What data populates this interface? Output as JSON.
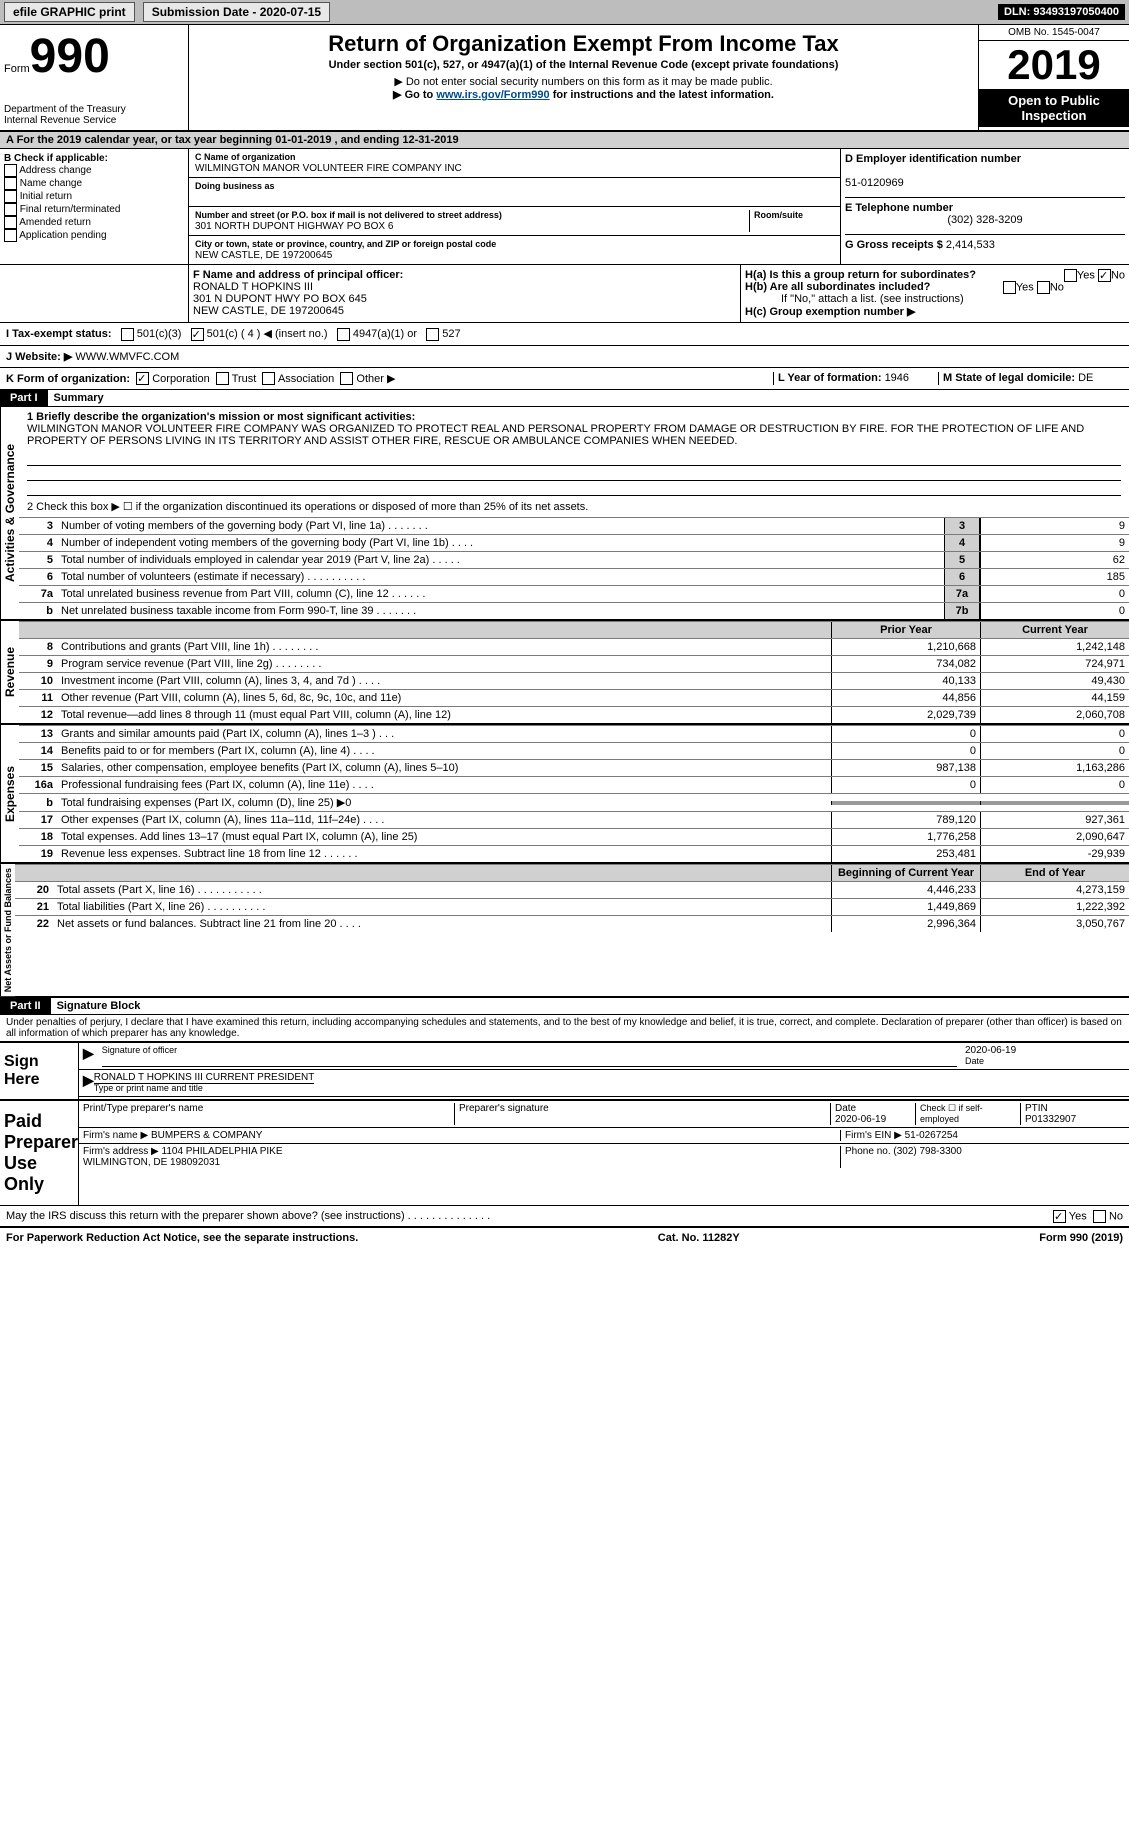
{
  "topbar": {
    "efile": "efile GRAPHIC print",
    "sub_lbl": "Submission Date - ",
    "sub_date": "2020-07-15",
    "dln_lbl": "DLN: ",
    "dln": "93493197050400"
  },
  "header": {
    "form_prefix": "Form",
    "form_no": "990",
    "dept": "Department of the Treasury\nInternal Revenue Service",
    "title": "Return of Organization Exempt From Income Tax",
    "subtitle": "Under section 501(c), 527, or 4947(a)(1) of the Internal Revenue Code (except private foundations)",
    "note1": "▶ Do not enter social security numbers on this form as it may be made public.",
    "note2_a": "▶ Go to ",
    "note2_link": "www.irs.gov/Form990",
    "note2_b": " for instructions and the latest information.",
    "omb": "OMB No. 1545-0047",
    "year": "2019",
    "open": "Open to Public Inspection"
  },
  "Aline": "A For the 2019 calendar year, or tax year beginning 01-01-2019   , and ending 12-31-2019",
  "B": {
    "lbl": "B Check if applicable:",
    "items": [
      "Address change",
      "Name change",
      "Initial return",
      "Final return/terminated",
      "Amended return",
      "Application pending"
    ]
  },
  "C": {
    "name_lbl": "C Name of organization",
    "name": "WILMINGTON MANOR VOLUNTEER FIRE COMPANY INC",
    "dba_lbl": "Doing business as",
    "addr_lbl": "Number and street (or P.O. box if mail is not delivered to street address)",
    "room_lbl": "Room/suite",
    "addr": "301 NORTH DUPONT HIGHWAY PO BOX 6",
    "city_lbl": "City or town, state or province, country, and ZIP or foreign postal code",
    "city": "NEW CASTLE, DE  197200645"
  },
  "D": {
    "lbl": "D Employer identification number",
    "val": "51-0120969"
  },
  "E": {
    "lbl": "E Telephone number",
    "val": "(302) 328-3209"
  },
  "G": {
    "lbl": "G Gross receipts $ ",
    "val": "2,414,533"
  },
  "F": {
    "lbl": "F  Name and address of principal officer:",
    "name": "RONALD T HOPKINS III",
    "addr": "301 N DUPONT HWY PO BOX 645\nNEW CASTLE, DE  197200645"
  },
  "H": {
    "a": "H(a)  Is this a group return for subordinates?",
    "b": "H(b)  Are all subordinates included?",
    "b2": "If \"No,\" attach a list. (see instructions)",
    "c": "H(c)  Group exemption number ▶",
    "yes": "Yes",
    "no": "No"
  },
  "I": {
    "lbl": "I   Tax-exempt status:",
    "opts": [
      "501(c)(3)",
      "501(c) ( 4 ) ◀ (insert no.)",
      "4947(a)(1) or",
      "527"
    ]
  },
  "J": {
    "lbl": "J   Website: ▶ ",
    "val": "WWW.WMVFC.COM"
  },
  "K": {
    "lbl": "K Form of organization:",
    "opts": [
      "Corporation",
      "Trust",
      "Association",
      "Other ▶"
    ]
  },
  "L": {
    "lbl": "L Year of formation: ",
    "val": "1946"
  },
  "M": {
    "lbl": "M State of legal domicile: ",
    "val": "DE"
  },
  "part1": {
    "hdr": "Part I",
    "title": "Summary",
    "l1_lbl": "1  Briefly describe the organization's mission or most significant activities:",
    "l1_text": "WILMINGTON MANOR VOLUNTEER FIRE COMPANY WAS ORGANIZED TO PROTECT REAL AND PERSONAL PROPERTY FROM DAMAGE OR DESTRUCTION BY FIRE. FOR THE PROTECTION OF LIFE AND PROPERTY OF PERSONS LIVING IN ITS TERRITORY AND ASSIST OTHER FIRE, RESCUE OR AMBULANCE COMPANIES WHEN NEEDED.",
    "l2": "2   Check this box ▶ ☐ if the organization discontinued its operations or disposed of more than 25% of its net assets.",
    "rows_gov": [
      {
        "n": "3",
        "d": "Number of voting members of the governing body (Part VI, line 1a)  .    .    .    .    .    .    .",
        "box": "3",
        "v": "9"
      },
      {
        "n": "4",
        "d": "Number of independent voting members of the governing body (Part VI, line 1b)   .    .    .    .",
        "box": "4",
        "v": "9"
      },
      {
        "n": "5",
        "d": "Total number of individuals employed in calendar year 2019 (Part V, line 2a)  .    .    .    .    .",
        "box": "5",
        "v": "62"
      },
      {
        "n": "6",
        "d": "Total number of volunteers (estimate if necessary)   .    .    .    .    .    .    .    .    .    .",
        "box": "6",
        "v": "185"
      },
      {
        "n": "7a",
        "d": "Total unrelated business revenue from Part VIII, column (C), line 12   .    .    .    .    .    .",
        "box": "7a",
        "v": "0"
      },
      {
        "n": "b",
        "d": "Net unrelated business taxable income from Form 990-T, line 39   .    .    .    .    .    .    .",
        "box": "7b",
        "v": "0"
      }
    ],
    "prior": "Prior Year",
    "current": "Current Year",
    "rows_rev": [
      {
        "n": "8",
        "d": "Contributions and grants (Part VIII, line 1h)   .    .    .    .    .    .    .    .",
        "p": "1,210,668",
        "c": "1,242,148"
      },
      {
        "n": "9",
        "d": "Program service revenue (Part VIII, line 2g)   .    .    .    .    .    .    .    .",
        "p": "734,082",
        "c": "724,971"
      },
      {
        "n": "10",
        "d": "Investment income (Part VIII, column (A), lines 3, 4, and 7d )    .    .    .    .",
        "p": "40,133",
        "c": "49,430"
      },
      {
        "n": "11",
        "d": "Other revenue (Part VIII, column (A), lines 5, 6d, 8c, 9c, 10c, and 11e)",
        "p": "44,856",
        "c": "44,159"
      },
      {
        "n": "12",
        "d": "Total revenue—add lines 8 through 11 (must equal Part VIII, column (A), line 12)",
        "p": "2,029,739",
        "c": "2,060,708"
      }
    ],
    "rows_exp": [
      {
        "n": "13",
        "d": "Grants and similar amounts paid (Part IX, column (A), lines 1–3 )  .    .    .",
        "p": "0",
        "c": "0"
      },
      {
        "n": "14",
        "d": "Benefits paid to or for members (Part IX, column (A), line 4)  .    .    .    .",
        "p": "0",
        "c": "0"
      },
      {
        "n": "15",
        "d": "Salaries, other compensation, employee benefits (Part IX, column (A), lines 5–10)",
        "p": "987,138",
        "c": "1,163,286"
      },
      {
        "n": "16a",
        "d": "Professional fundraising fees (Part IX, column (A), line 11e)  .    .    .    .",
        "p": "0",
        "c": "0"
      },
      {
        "n": "b",
        "d": "Total fundraising expenses (Part IX, column (D), line 25) ▶0",
        "p": "",
        "c": ""
      },
      {
        "n": "17",
        "d": "Other expenses (Part IX, column (A), lines 11a–11d, 11f–24e)  .    .    .    .",
        "p": "789,120",
        "c": "927,361"
      },
      {
        "n": "18",
        "d": "Total expenses. Add lines 13–17 (must equal Part IX, column (A), line 25)",
        "p": "1,776,258",
        "c": "2,090,647"
      },
      {
        "n": "19",
        "d": "Revenue less expenses. Subtract line 18 from line 12  .    .    .    .    .    .",
        "p": "253,481",
        "c": "-29,939"
      }
    ],
    "beg": "Beginning of Current Year",
    "end": "End of Year",
    "rows_bal": [
      {
        "n": "20",
        "d": "Total assets (Part X, line 16)  .    .    .    .    .    .    .    .    .    .    .",
        "p": "4,446,233",
        "c": "4,273,159"
      },
      {
        "n": "21",
        "d": "Total liabilities (Part X, line 26)  .    .    .    .    .    .    .    .    .    .",
        "p": "1,449,869",
        "c": "1,222,392"
      },
      {
        "n": "22",
        "d": "Net assets or fund balances. Subtract line 21 from line 20   .    .    .    .",
        "p": "2,996,364",
        "c": "3,050,767"
      }
    ],
    "vg": "Activities & Governance",
    "vr": "Revenue",
    "ve": "Expenses",
    "vb": "Net Assets or Fund Balances"
  },
  "part2": {
    "hdr": "Part II",
    "title": "Signature Block",
    "decl": "Under penalties of perjury, I declare that I have examined this return, including accompanying schedules and statements, and to the best of my knowledge and belief, it is true, correct, and complete. Declaration of preparer (other than officer) is based on all information of which preparer has any knowledge.",
    "sign": "Sign Here",
    "sig_officer": "Signature of officer",
    "date": "Date",
    "sig_date": "2020-06-19",
    "name_title": "RONALD T HOPKINS III CURRENT PRESIDENT",
    "type_name": "Type or print name and title",
    "paid": "Paid Preparer Use Only",
    "pp_name": "Print/Type preparer's name",
    "pp_sig": "Preparer's signature",
    "pp_date_lbl": "Date",
    "pp_date": "2020-06-19",
    "check_self": "Check ☐ if self-employed",
    "ptin_lbl": "PTIN",
    "ptin": "P01332907",
    "firm_name": "Firm's name   ▶ ",
    "firm": "BUMPERS & COMPANY",
    "firm_ein_lbl": "Firm's EIN ▶ ",
    "firm_ein": "51-0267254",
    "firm_addr_lbl": "Firm's address ▶ ",
    "firm_addr": "1104 PHILADELPHIA PIKE\nWILMINGTON, DE  198092031",
    "phone_lbl": "Phone no. ",
    "phone": "(302) 798-3300",
    "discuss": "May the IRS discuss this return with the preparer shown above? (see instructions)   .    .    .    .    .    .    .    .    .    .    .    .    .    .",
    "yes": "Yes",
    "no": "No"
  },
  "footer": {
    "l": "For Paperwork Reduction Act Notice, see the separate instructions.",
    "c": "Cat. No. 11282Y",
    "r": "Form 990 (2019)"
  }
}
